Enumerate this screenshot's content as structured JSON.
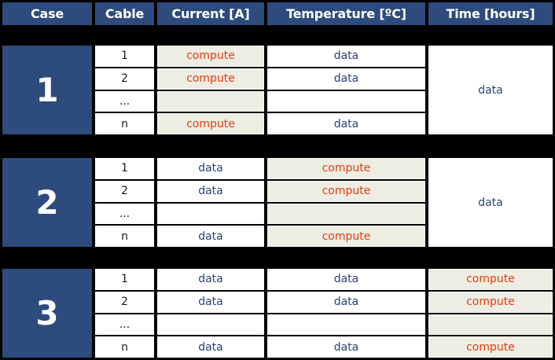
{
  "table": {
    "headers": [
      "Case",
      "Cable",
      "Current [A]",
      "Temperature [ºC]",
      "Time [hours]"
    ],
    "cell_labels": {
      "data": "data",
      "compute": "compute"
    },
    "cases": [
      {
        "number": "1",
        "time": "data",
        "rows": [
          {
            "cable": "1",
            "current": "compute",
            "temperature": "data"
          },
          {
            "cable": "2",
            "current": "compute",
            "temperature": "data"
          },
          {
            "cable": "...",
            "current": "",
            "temperature": ""
          },
          {
            "cable": "n",
            "current": "compute",
            "temperature": "data"
          }
        ]
      },
      {
        "number": "2",
        "time": "data",
        "rows": [
          {
            "cable": "1",
            "current": "data",
            "temperature": "compute"
          },
          {
            "cable": "2",
            "current": "data",
            "temperature": "compute"
          },
          {
            "cable": "...",
            "current": "",
            "temperature": ""
          },
          {
            "cable": "n",
            "current": "data",
            "temperature": "compute"
          }
        ]
      },
      {
        "number": "3",
        "rows": [
          {
            "cable": "1",
            "current": "data",
            "temperature": "data",
            "time": "compute"
          },
          {
            "cable": "2",
            "current": "data",
            "temperature": "data",
            "time": "compute"
          },
          {
            "cable": "...",
            "current": "",
            "temperature": "",
            "time": ""
          },
          {
            "cable": "n",
            "current": "data",
            "temperature": "data",
            "time": "compute"
          }
        ]
      }
    ]
  },
  "colors": {
    "frame_bg": "#000000",
    "header_bg": "#2D4B7C",
    "header_text": "#FFFFFF",
    "cell_bg": "#FFFFFF",
    "compute_bg": "#EEEDE3",
    "compute_text": "#E23E0E",
    "data_text": "#2A4373",
    "cable_text": "#1A1A1A"
  }
}
